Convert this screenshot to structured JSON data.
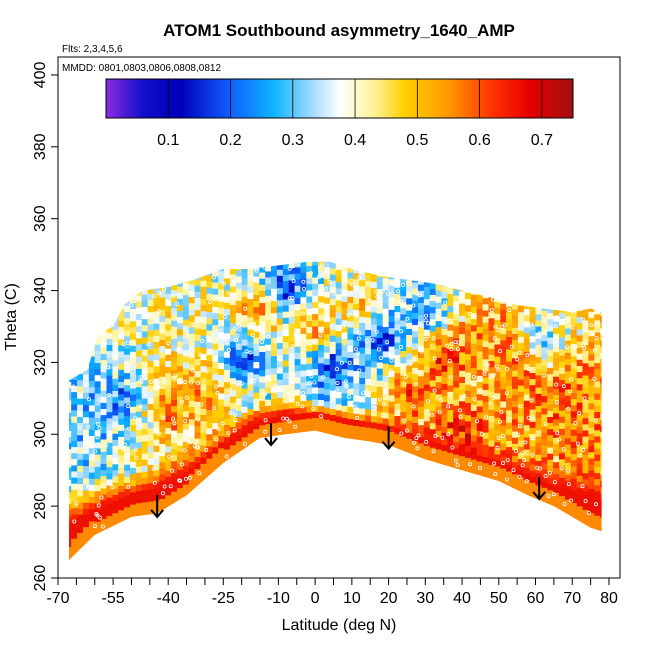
{
  "chart_data": {
    "type": "heatmap",
    "title": "ATOM1 Southbound asymmetry_1640_AMP",
    "annotations": {
      "flights": "Flts: 2,3,4,5,6",
      "dates": "MMDD: 0801,0803,0806,0808,0812"
    },
    "xlabel": "Latitude (deg N)",
    "ylabel": "Theta (C)",
    "xlim": [
      -70,
      83
    ],
    "ylim": [
      260,
      405
    ],
    "x_ticks": [
      -70,
      -55,
      -40,
      -25,
      -10,
      0,
      10,
      20,
      30,
      40,
      50,
      60,
      70,
      80
    ],
    "x_tick_labels": [
      "-70",
      "-55",
      "-40",
      "-25",
      "-10",
      "0",
      "10",
      "20",
      "30",
      "40",
      "50",
      "60",
      "70",
      "80"
    ],
    "x_minor_ticks": [
      -65,
      -60,
      -50,
      -45,
      -35,
      -30,
      -20,
      -15,
      -5,
      5,
      15,
      25,
      35,
      45,
      55,
      65,
      75
    ],
    "y_ticks": [
      260,
      280,
      300,
      320,
      340,
      360,
      380,
      400
    ],
    "y_tick_labels": [
      "260",
      "280",
      "300",
      "320",
      "340",
      "360",
      "380",
      "400"
    ],
    "colorbar": {
      "range": [
        0.0,
        0.75
      ],
      "ticks": [
        0.1,
        0.2,
        0.3,
        0.4,
        0.5,
        0.6,
        0.7
      ],
      "tick_labels": [
        "0.1",
        "0.2",
        "0.3",
        "0.4",
        "0.5",
        "0.6",
        "0.7"
      ],
      "stops": [
        {
          "v": 0.0,
          "color": "#8a2be2"
        },
        {
          "v": 0.06,
          "color": "#1010c8"
        },
        {
          "v": 0.12,
          "color": "#0000b8"
        },
        {
          "v": 0.2,
          "color": "#1060ff"
        },
        {
          "v": 0.27,
          "color": "#10b4ff"
        },
        {
          "v": 0.33,
          "color": "#a0d8ff"
        },
        {
          "v": 0.375,
          "color": "#ffffff"
        },
        {
          "v": 0.43,
          "color": "#fff39a"
        },
        {
          "v": 0.48,
          "color": "#ffd000"
        },
        {
          "v": 0.55,
          "color": "#ff9900"
        },
        {
          "v": 0.62,
          "color": "#ff3300"
        },
        {
          "v": 0.68,
          "color": "#e60000"
        },
        {
          "v": 0.75,
          "color": "#a01010"
        }
      ]
    },
    "domain": {
      "top": [
        [
          -67,
          315
        ],
        [
          -62,
          318
        ],
        [
          -59,
          328
        ],
        [
          -55,
          330
        ],
        [
          -52,
          336
        ],
        [
          -47,
          340
        ],
        [
          -40,
          341
        ],
        [
          -33,
          343
        ],
        [
          -25,
          346
        ],
        [
          -18,
          346
        ],
        [
          -10,
          347
        ],
        [
          -2,
          348
        ],
        [
          4,
          348
        ],
        [
          10,
          346
        ],
        [
          18,
          344
        ],
        [
          25,
          343
        ],
        [
          32,
          342
        ],
        [
          40,
          340
        ],
        [
          48,
          338
        ],
        [
          55,
          336
        ],
        [
          62,
          335
        ],
        [
          70,
          334
        ],
        [
          75,
          335
        ],
        [
          78,
          334
        ]
      ],
      "bottom": [
        [
          -67,
          265
        ],
        [
          -60,
          272
        ],
        [
          -50,
          277
        ],
        [
          -43,
          278
        ],
        [
          -35,
          283
        ],
        [
          -25,
          292
        ],
        [
          -15,
          299
        ],
        [
          -8,
          300
        ],
        [
          0,
          301
        ],
        [
          8,
          299
        ],
        [
          15,
          298
        ],
        [
          20,
          297
        ],
        [
          30,
          293
        ],
        [
          40,
          290
        ],
        [
          50,
          287
        ],
        [
          58,
          283
        ],
        [
          65,
          280
        ],
        [
          70,
          277
        ],
        [
          75,
          274
        ],
        [
          78,
          273
        ]
      ]
    },
    "surface_band": [
      {
        "lat": -67,
        "low": 265,
        "high": 285
      },
      {
        "lat": -60,
        "low": 272,
        "high": 287
      },
      {
        "lat": -50,
        "low": 277,
        "high": 290
      },
      {
        "lat": -43,
        "low": 278,
        "high": 293
      },
      {
        "lat": -35,
        "low": 283,
        "high": 297
      },
      {
        "lat": -25,
        "low": 292,
        "high": 303
      },
      {
        "lat": -15,
        "low": 299,
        "high": 310
      },
      {
        "lat": -8,
        "low": 300,
        "high": 312
      },
      {
        "lat": 0,
        "low": 301,
        "high": 310
      },
      {
        "lat": 8,
        "low": 299,
        "high": 309
      },
      {
        "lat": 15,
        "low": 298,
        "high": 307
      },
      {
        "lat": 20,
        "low": 297,
        "high": 306
      },
      {
        "lat": 30,
        "low": 293,
        "high": 303
      },
      {
        "lat": 40,
        "low": 290,
        "high": 300
      },
      {
        "lat": 50,
        "low": 287,
        "high": 297
      },
      {
        "lat": 58,
        "low": 283,
        "high": 294
      },
      {
        "lat": 65,
        "low": 280,
        "high": 292
      },
      {
        "lat": 70,
        "low": 277,
        "high": 292
      },
      {
        "lat": 75,
        "low": 274,
        "high": 293
      },
      {
        "lat": 78,
        "low": 273,
        "high": 290
      }
    ],
    "features": [
      {
        "lat": -53,
        "theta": 308,
        "value": 0.18
      },
      {
        "lat": -48,
        "theta": 302,
        "value": 0.42
      },
      {
        "lat": -40,
        "theta": 306,
        "value": 0.58
      },
      {
        "lat": -35,
        "theta": 320,
        "value": 0.46
      },
      {
        "lat": -30,
        "theta": 312,
        "value": 0.55
      },
      {
        "lat": -20,
        "theta": 322,
        "value": 0.16
      },
      {
        "lat": -15,
        "theta": 334,
        "value": 0.6
      },
      {
        "lat": -8,
        "theta": 340,
        "value": 0.12
      },
      {
        "lat": 0,
        "theta": 330,
        "value": 0.55
      },
      {
        "lat": 5,
        "theta": 318,
        "value": 0.14
      },
      {
        "lat": 12,
        "theta": 336,
        "value": 0.5
      },
      {
        "lat": 18,
        "theta": 326,
        "value": 0.12
      },
      {
        "lat": 25,
        "theta": 312,
        "value": 0.6
      },
      {
        "lat": 30,
        "theta": 334,
        "value": 0.2
      },
      {
        "lat": 35,
        "theta": 322,
        "value": 0.68
      },
      {
        "lat": 45,
        "theta": 312,
        "value": 0.48
      },
      {
        "lat": 50,
        "theta": 328,
        "value": 0.55
      },
      {
        "lat": 55,
        "theta": 318,
        "value": 0.6
      },
      {
        "lat": 62,
        "theta": 326,
        "value": 0.28
      },
      {
        "lat": 68,
        "theta": 312,
        "value": 0.62
      },
      {
        "lat": 72,
        "theta": 300,
        "value": 0.55
      },
      {
        "lat": -60,
        "theta": 300,
        "value": 0.3
      },
      {
        "lat": 40,
        "theta": 300,
        "value": 0.65
      }
    ],
    "arrows": [
      {
        "lat": -43,
        "theta": 277
      },
      {
        "lat": -12,
        "theta": 297
      },
      {
        "lat": 20,
        "theta": 296
      },
      {
        "lat": 61,
        "theta": 282
      }
    ]
  }
}
